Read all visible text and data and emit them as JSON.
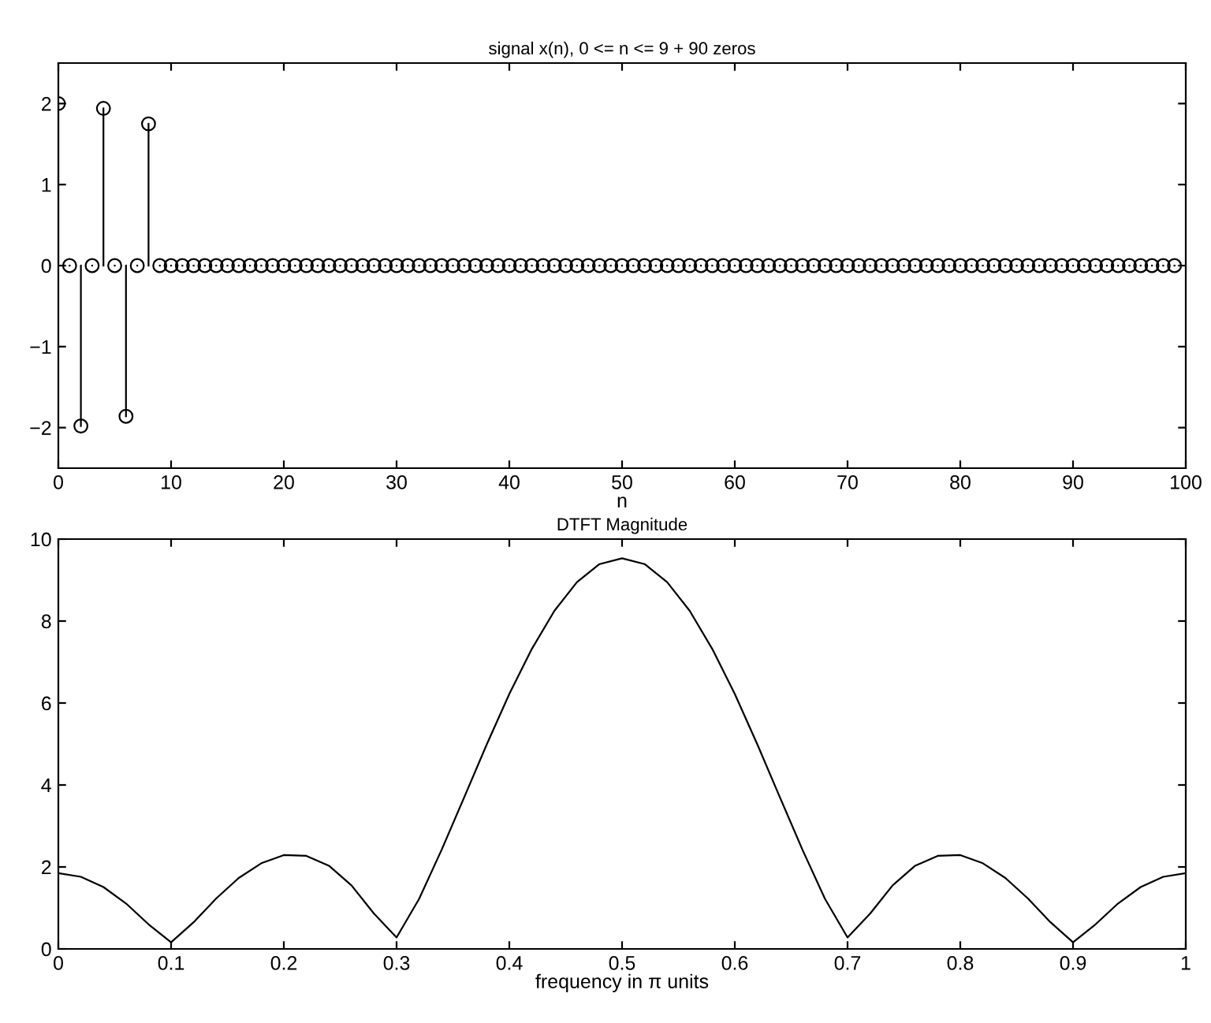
{
  "chart_data": [
    {
      "type": "lollipop",
      "title": "signal x(n), 0 <= n <= 9 + 90 zeros",
      "xlabel": "n",
      "marker": "circle",
      "xlim": [
        0,
        100
      ],
      "ylim": [
        -2.5,
        2.5
      ],
      "xticks": [
        0,
        10,
        20,
        30,
        40,
        50,
        60,
        70,
        80,
        90,
        100
      ],
      "yticks": [
        {
          "value": -2,
          "label": "−2"
        },
        {
          "value": -1,
          "label": "−1"
        },
        0,
        1,
        2
      ],
      "grid": false,
      "legend": false,
      "x": [
        0,
        1,
        2,
        3,
        4,
        5,
        6,
        7,
        8,
        9,
        10,
        11,
        12,
        13,
        14,
        15,
        16,
        17,
        18,
        19,
        20,
        21,
        22,
        23,
        24,
        25,
        26,
        27,
        28,
        29,
        30,
        31,
        32,
        33,
        34,
        35,
        36,
        37,
        38,
        39,
        40,
        41,
        42,
        43,
        44,
        45,
        46,
        47,
        48,
        49,
        50,
        51,
        52,
        53,
        54,
        55,
        56,
        57,
        58,
        59,
        60,
        61,
        62,
        63,
        64,
        65,
        66,
        67,
        68,
        69,
        70,
        71,
        72,
        73,
        74,
        75,
        76,
        77,
        78,
        79,
        80,
        81,
        82,
        83,
        84,
        85,
        86,
        87,
        88,
        89,
        90,
        91,
        92,
        93,
        94,
        95,
        96,
        97,
        98,
        99
      ],
      "series": [
        {
          "color": "#000000",
          "values": [
            2,
            0,
            -1.98,
            0,
            1.94,
            0,
            -1.86,
            0,
            1.75,
            0,
            0,
            0,
            0,
            0,
            0,
            0,
            0,
            0,
            0,
            0,
            0,
            0,
            0,
            0,
            0,
            0,
            0,
            0,
            0,
            0,
            0,
            0,
            0,
            0,
            0,
            0,
            0,
            0,
            0,
            0,
            0,
            0,
            0,
            0,
            0,
            0,
            0,
            0,
            0,
            0,
            0,
            0,
            0,
            0,
            0,
            0,
            0,
            0,
            0,
            0,
            0,
            0,
            0,
            0,
            0,
            0,
            0,
            0,
            0,
            0,
            0,
            0,
            0,
            0,
            0,
            0,
            0,
            0,
            0,
            0,
            0,
            0,
            0,
            0,
            0,
            0,
            0,
            0,
            0,
            0,
            0,
            0,
            0,
            0,
            0,
            0,
            0,
            0,
            0,
            0
          ]
        }
      ]
    },
    {
      "type": "line",
      "title": "DTFT Magnitude",
      "xlabel": "frequency in π units",
      "marker": "none",
      "line_style": "solid",
      "xlim": [
        0,
        1
      ],
      "ylim": [
        0,
        10
      ],
      "xticks": [
        0,
        0.1,
        0.2,
        0.3,
        0.4,
        0.5,
        0.6,
        0.7,
        0.8,
        0.9,
        1
      ],
      "yticks": [
        0,
        2,
        4,
        6,
        8,
        10
      ],
      "grid": false,
      "legend": false,
      "x": [
        0,
        0.02,
        0.04,
        0.06,
        0.08,
        0.1,
        0.12,
        0.14,
        0.16,
        0.18,
        0.2,
        0.22,
        0.24,
        0.26,
        0.28,
        0.3,
        0.32,
        0.34,
        0.36,
        0.38,
        0.4,
        0.42,
        0.44,
        0.46,
        0.48,
        0.5,
        0.52,
        0.54,
        0.56,
        0.58,
        0.6,
        0.62,
        0.64,
        0.66,
        0.68,
        0.7,
        0.72,
        0.74,
        0.76,
        0.78,
        0.8,
        0.82,
        0.84,
        0.86,
        0.88,
        0.9,
        0.92,
        0.94,
        0.96,
        0.98,
        1
      ],
      "series": [
        {
          "color": "#000000",
          "values": [
            1.85,
            1.76,
            1.51,
            1.11,
            0.6,
            0.16,
            0.65,
            1.23,
            1.73,
            2.09,
            2.29,
            2.27,
            2.03,
            1.55,
            0.86,
            0.28,
            1.22,
            2.42,
            3.7,
            4.99,
            6.22,
            7.32,
            8.25,
            8.95,
            9.39,
            9.53,
            9.39,
            8.95,
            8.25,
            7.32,
            6.22,
            4.99,
            3.7,
            2.42,
            1.22,
            0.28,
            0.86,
            1.55,
            2.03,
            2.27,
            2.29,
            2.09,
            1.73,
            1.23,
            0.65,
            0.16,
            0.6,
            1.11,
            1.51,
            1.76,
            1.85
          ]
        }
      ]
    }
  ]
}
